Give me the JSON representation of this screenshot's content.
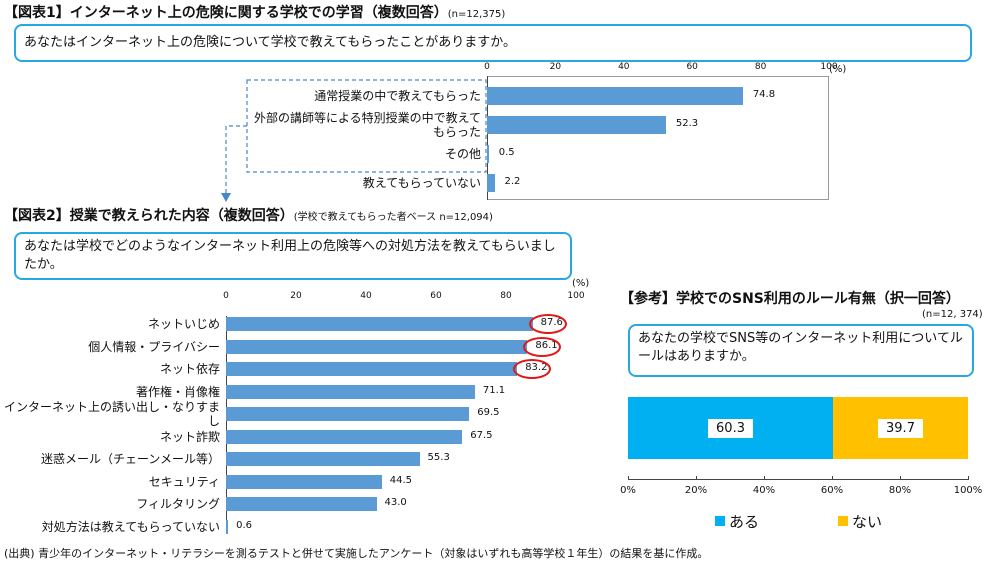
{
  "fig1": {
    "heading": "【図表1】インターネット上の危険に関する学校での学習（複数回答）",
    "n": "(n=12,375)",
    "question": "あなたはインターネット上の危険について学校で教えてもらったことがありますか。"
  },
  "fig2": {
    "heading": "【図表2】授業で教えられた内容（複数回答）",
    "sub": "(学校で教えてもらった者ベース n=12,094)",
    "question": "あなたは学校でどのようなインターネット利用上の危険等への対処方法を教えてもらいましたか。"
  },
  "ref": {
    "heading": "【参考】学校でのSNS利用のルール有無（択一回答）",
    "n": "(n=12, 374)",
    "question": "あなたの学校でSNS等のインターネット利用についてルールはありますか。"
  },
  "footer": "(出典) 青少年のインターネット・リテラシーを測るテストと併せて実施したアンケート（対象はいずれも高等学校１年生）の結果を基に作成。",
  "colors": {
    "bar": "#5b9bd5",
    "aru": "#00b0f0",
    "nai": "#ffc000",
    "box": "#29a7e1",
    "highlight": "#e01818"
  },
  "chart_data": [
    {
      "type": "bar",
      "orientation": "horizontal",
      "categories": [
        "通常授業の中で教えてもらった",
        "外部の講師等による特別授業の中で教えてもらった",
        "その他",
        "教えてもらっていない"
      ],
      "values": [
        74.8,
        52.3,
        0.5,
        2.2
      ],
      "value_labels": [
        "74.8",
        "52.3",
        "0.5",
        "2.2"
      ],
      "xlim": [
        0,
        100
      ],
      "ticks": [
        "0",
        "20",
        "40",
        "60",
        "80",
        "100"
      ],
      "unit": "(%)"
    },
    {
      "type": "bar",
      "orientation": "horizontal",
      "categories": [
        "ネットいじめ",
        "個人情報・プライバシー",
        "ネット依存",
        "著作権・肖像権",
        "インターネット上の誘い出し・なりすまし",
        "ネット詐欺",
        "迷惑メール（チェーンメール等）",
        "セキュリティ",
        "フィルタリング",
        "対処方法は教えてもらっていない"
      ],
      "values": [
        87.6,
        86.1,
        83.2,
        71.1,
        69.5,
        67.5,
        55.3,
        44.5,
        43.0,
        0.6
      ],
      "value_labels": [
        "87.6",
        "86.1",
        "83.2",
        "71.1",
        "69.5",
        "67.5",
        "55.3",
        "44.5",
        "43.0",
        "0.6"
      ],
      "highlighted": [
        0,
        1,
        2
      ],
      "xlim": [
        0,
        100
      ],
      "ticks": [
        "0",
        "20",
        "40",
        "60",
        "80",
        "100"
      ],
      "unit": "(%)"
    },
    {
      "type": "bar",
      "orientation": "horizontal",
      "stacked": true,
      "percent": true,
      "series": [
        {
          "name": "ある",
          "value": 60.3,
          "label": "60.3"
        },
        {
          "name": "ない",
          "value": 39.7,
          "label": "39.7"
        }
      ],
      "xlim": [
        0,
        100
      ],
      "ticks": [
        "0%",
        "20%",
        "40%",
        "60%",
        "80%",
        "100%"
      ],
      "legend": "bottom",
      "legend_labels": [
        "ある",
        "ない"
      ]
    }
  ]
}
